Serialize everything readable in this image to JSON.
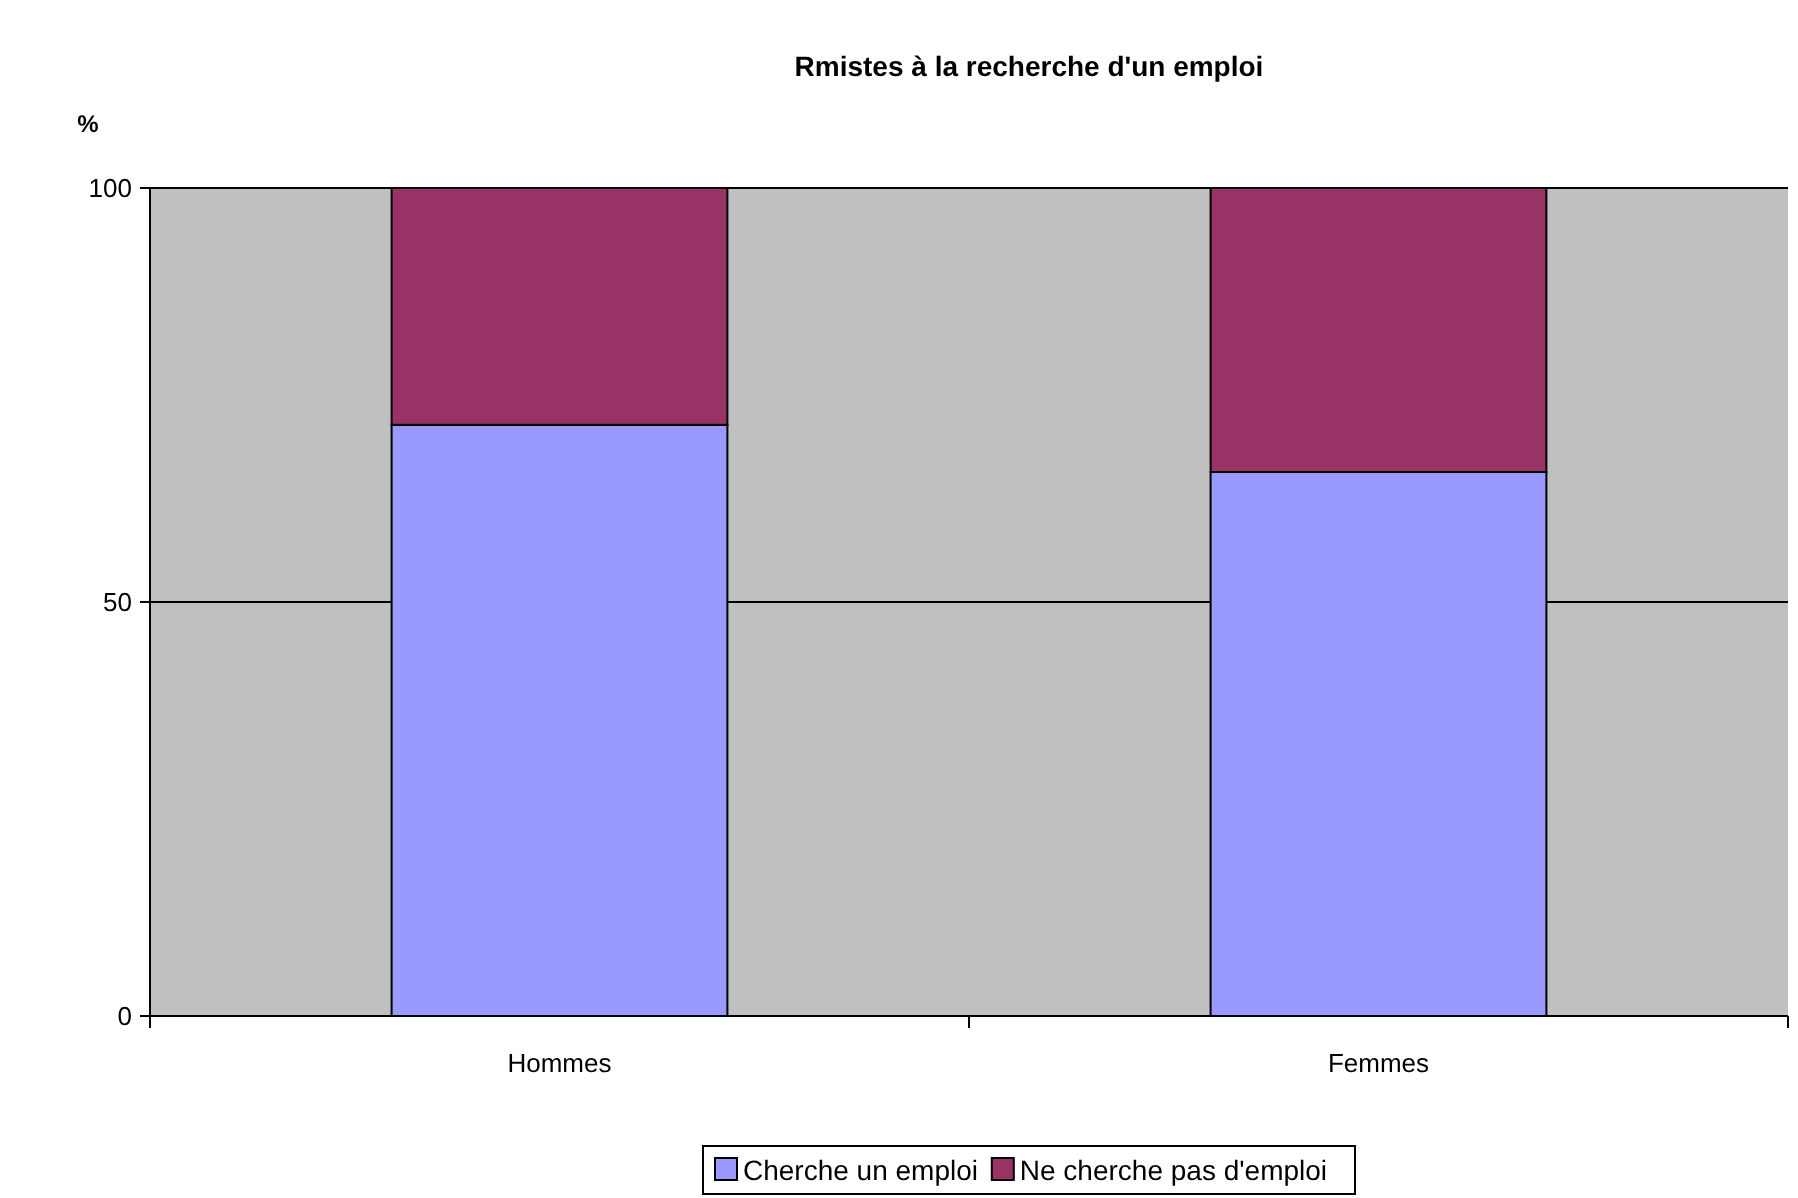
{
  "chart_data": {
    "type": "bar",
    "title": "Rmistes à la recherche d'un emploi",
    "ylabel": "%",
    "categories": [
      "Hommes",
      "Femmes"
    ],
    "stacked": true,
    "series": [
      {
        "name": "Cherche un emploi",
        "color": "#9999ff",
        "values": [
          71.4,
          65.7
        ]
      },
      {
        "name": "Ne cherche pas d'emploi",
        "color": "#993366",
        "values": [
          28.6,
          34.3
        ]
      }
    ],
    "ylim": [
      0,
      100
    ],
    "yticks": [
      0,
      50,
      100
    ],
    "grid": "y",
    "legend": "bottom"
  }
}
